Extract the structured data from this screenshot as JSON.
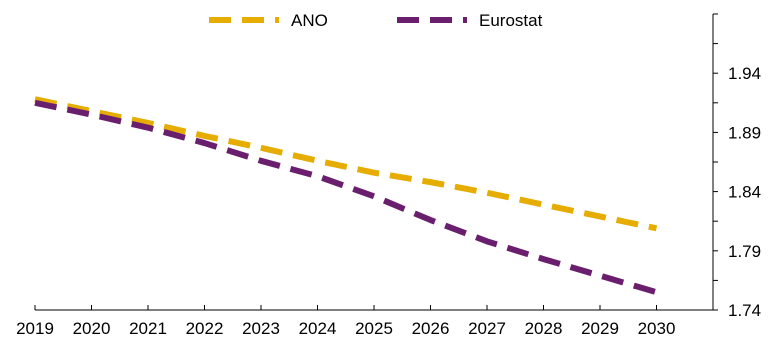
{
  "chart_data": {
    "type": "line",
    "title": "",
    "xlabel": "",
    "ylabel": "",
    "x": [
      2019,
      2020,
      2021,
      2022,
      2023,
      2024,
      2025,
      2026,
      2027,
      2028,
      2029,
      2030
    ],
    "x_tick_labels": [
      "2019",
      "2020",
      "2021",
      "2022",
      "2023",
      "2024",
      "2025",
      "2026",
      "2027",
      "2028",
      "2029",
      "2030"
    ],
    "y_tick_labels": [
      "1.94",
      "1.89",
      "1.84",
      "1.79",
      "1.74"
    ],
    "y_ticks": [
      1.94,
      1.89,
      1.84,
      1.79,
      1.74
    ],
    "ylim": [
      1.74,
      1.99
    ],
    "y_axis_side": "right",
    "grid": false,
    "legend_placement": "top",
    "line_style": "dashed",
    "series": [
      {
        "name": "ANO",
        "color": "#E6AC00",
        "values": [
          1.918,
          1.908,
          1.898,
          1.887,
          1.877,
          1.866,
          1.856,
          1.848,
          1.839,
          1.829,
          1.819,
          1.809
        ]
      },
      {
        "name": "Eurostat",
        "color": "#6A1F6E",
        "values": [
          1.915,
          1.905,
          1.894,
          1.881,
          1.866,
          1.853,
          1.836,
          1.816,
          1.798,
          1.783,
          1.769,
          1.755
        ]
      }
    ]
  }
}
